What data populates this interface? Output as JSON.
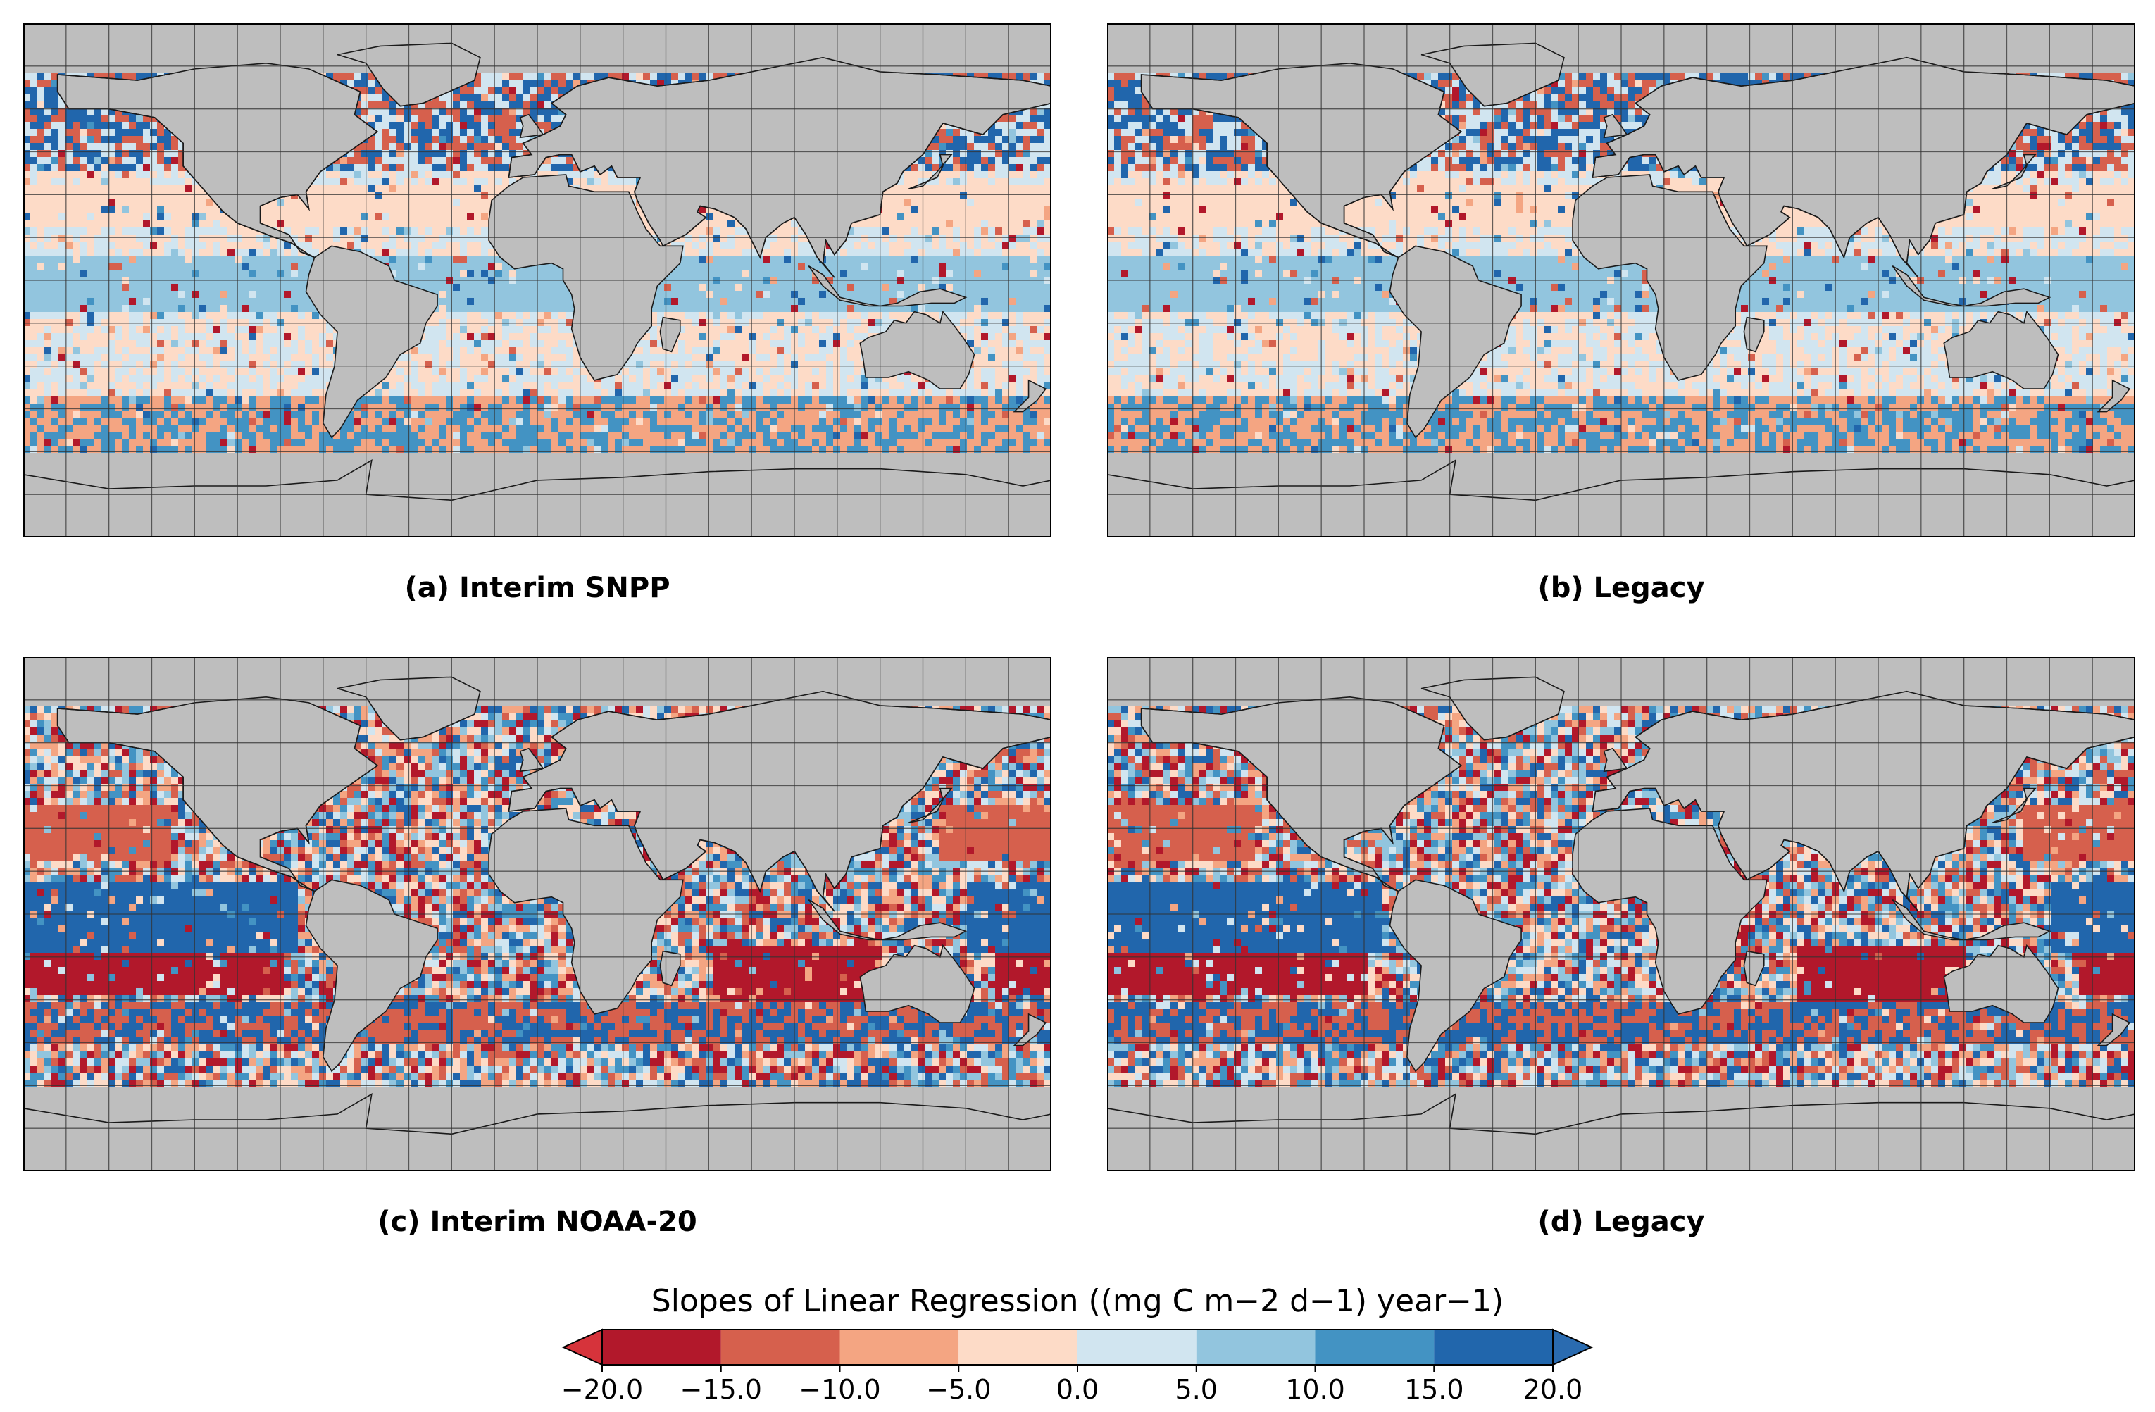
{
  "chart_data": [
    {
      "type": "heatmap",
      "panel_label": "(a) Interim SNPP",
      "map_projection": "equirectangular",
      "land_color": "#bebebe",
      "grid": true,
      "dominant_pattern": "moderate trends; mostly weak values (-5 to 5) with scattered positive trends at high northern latitudes and negative trends near coasts"
    },
    {
      "type": "heatmap",
      "panel_label": "(b) Legacy",
      "map_projection": "equirectangular",
      "land_color": "#bebebe",
      "grid": true,
      "dominant_pattern": "moderate trends; similar to (a)"
    },
    {
      "type": "heatmap",
      "panel_label": "(c) Interim NOAA-20",
      "map_projection": "equirectangular",
      "land_color": "#bebebe",
      "grid": true,
      "dominant_pattern": "strong trends; large positive (15 to 20) band in equatorial Pacific, strong negative areas in Indian Ocean and subtropics"
    },
    {
      "type": "heatmap",
      "panel_label": "(d) Legacy",
      "map_projection": "equirectangular",
      "land_color": "#bebebe",
      "grid": true,
      "dominant_pattern": "strong trends; similar to (c)"
    }
  ],
  "colorbar": {
    "title": "Slopes of Linear Regression ((mg C m−2 d−1) year−1)",
    "ticks": [
      "−20.0",
      "−15.0",
      "−10.0",
      "−5.0",
      "0.0",
      "5.0",
      "10.0",
      "15.0",
      "20.0"
    ],
    "range": [
      -20,
      20
    ],
    "extend": "both",
    "under_color": "#d6333b",
    "over_color": "#2a6bb0",
    "colors": [
      "#b2182b",
      "#d6604d",
      "#f4a582",
      "#fddbc7",
      "#d1e5f0",
      "#92c5de",
      "#4393c3",
      "#2166ac"
    ]
  }
}
